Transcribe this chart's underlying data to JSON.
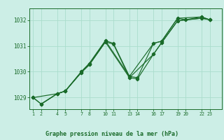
{
  "background_color": "#cceee6",
  "plot_bg_color": "#cceee6",
  "grid_color": "#aaddcc",
  "line_color": "#1a6b2a",
  "title": "Graphe pression niveau de la mer (hPa)",
  "ylim": [
    1028.55,
    1032.45
  ],
  "yticks": [
    1029,
    1030,
    1031,
    1032
  ],
  "xlim": [
    0.5,
    24.5
  ],
  "xtick_positions": [
    1,
    2,
    4,
    5,
    7,
    8,
    10,
    11,
    13,
    14,
    16,
    17,
    19,
    20,
    22,
    23
  ],
  "xtick_labels": [
    "1",
    "2",
    "4",
    "5",
    "7",
    "8",
    "10",
    "11",
    "13",
    "14",
    "16",
    "17",
    "19",
    "20",
    "22",
    "23"
  ],
  "lines": [
    {
      "x": [
        1,
        2,
        4,
        5,
        7,
        8,
        10,
        11,
        13,
        14,
        16,
        17,
        19,
        20,
        22,
        23
      ],
      "y": [
        1029.0,
        1028.75,
        1029.15,
        1029.25,
        1030.0,
        1030.32,
        1031.2,
        1031.1,
        1029.82,
        1029.77,
        1031.1,
        1031.18,
        1032.07,
        1032.01,
        1032.12,
        1032.01
      ]
    },
    {
      "x": [
        1,
        2,
        4,
        5,
        7,
        8,
        10,
        11,
        13,
        14,
        16,
        17,
        19,
        20,
        22,
        23
      ],
      "y": [
        1029.0,
        1028.75,
        1029.15,
        1029.25,
        1029.97,
        1030.27,
        1031.15,
        1031.07,
        1029.77,
        1029.72,
        1030.68,
        1031.12,
        1031.97,
        1032.01,
        1032.07,
        1032.01
      ]
    },
    {
      "x": [
        1,
        4,
        5,
        7,
        8,
        10,
        13,
        16,
        17,
        19,
        22,
        23
      ],
      "y": [
        1029.0,
        1029.15,
        1029.25,
        1030.0,
        1030.32,
        1031.2,
        1029.82,
        1031.1,
        1031.18,
        1032.07,
        1032.12,
        1032.01
      ]
    },
    {
      "x": [
        2,
        4,
        5,
        7,
        8,
        10,
        13,
        16,
        17,
        19,
        22,
        23
      ],
      "y": [
        1028.75,
        1029.15,
        1029.25,
        1029.97,
        1030.27,
        1031.15,
        1029.77,
        1030.68,
        1031.12,
        1031.97,
        1032.07,
        1032.01
      ]
    }
  ]
}
